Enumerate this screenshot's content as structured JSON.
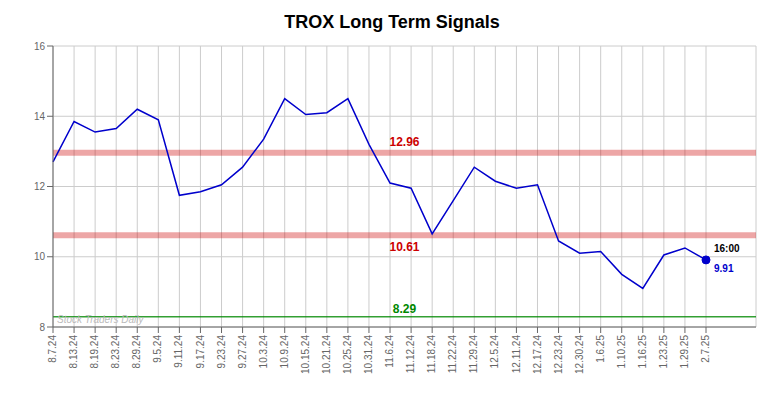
{
  "chart_data": {
    "type": "line",
    "title": "TROX Long Term Signals",
    "categories": [
      "8.7.24",
      "8.13.24",
      "8.19.24",
      "8.23.24",
      "8.29.24",
      "9.5.24",
      "9.11.24",
      "9.17.24",
      "9.23.24",
      "9.27.24",
      "10.3.24",
      "10.9.24",
      "10.15.24",
      "10.21.24",
      "10.25.24",
      "10.31.24",
      "11.6.24",
      "11.12.24",
      "11.18.24",
      "11.22.24",
      "11.29.24",
      "12.5.24",
      "12.11.24",
      "12.17.24",
      "12.23.24",
      "12.30.24",
      "1.6.25",
      "1.10.25",
      "1.16.25",
      "1.23.25",
      "1.29.25",
      "2.7.25"
    ],
    "values": [
      12.7,
      13.85,
      13.55,
      13.65,
      14.2,
      13.9,
      11.75,
      11.85,
      12.05,
      12.55,
      13.35,
      14.5,
      14.05,
      14.1,
      14.5,
      13.2,
      12.1,
      11.95,
      10.65,
      11.6,
      12.55,
      12.15,
      11.95,
      12.05,
      10.45,
      10.1,
      10.15,
      9.5,
      9.1,
      10.05,
      10.25,
      9.91
    ],
    "color": "#0000cc",
    "ylim": [
      8.0,
      16.0
    ],
    "yticks": [
      8,
      10,
      12,
      14,
      16
    ],
    "grid": true,
    "reference_lines": [
      {
        "value": 12.96,
        "label": "12.96",
        "color": "#cc0000"
      },
      {
        "value": 10.61,
        "label": "10.61",
        "color": "#cc0000"
      },
      {
        "value": 8.29,
        "label": "8.29",
        "color": "#008800"
      }
    ],
    "end_labels": [
      "16:00",
      "9.91"
    ],
    "watermark": "Stock Traders Daily"
  }
}
